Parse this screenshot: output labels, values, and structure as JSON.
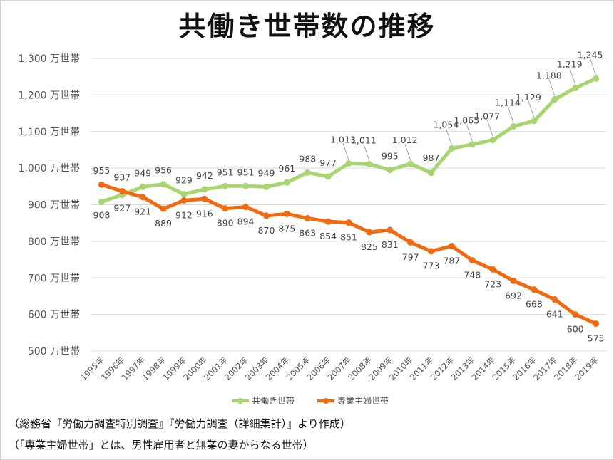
{
  "title": "共働き世帯数の推移",
  "notes": [
    "（総務省『労働力調査特別調査』『労働力調査（詳細集計）』より作成）",
    "（「専業主婦世帯」とは、男性雇用者と無業の妻からなる世帯）"
  ],
  "chart_data": {
    "type": "line",
    "title": "共働き世帯数の推移",
    "xlabel": "",
    "ylabel": "",
    "ylim": [
      500,
      1300
    ],
    "y_ticks": [
      "1,300 万世帯",
      "1,200 万世帯",
      "1,100 万世帯",
      "1,000 万世帯",
      "900 万世帯",
      "800 万世帯",
      "700 万世帯",
      "600 万世帯",
      "500 万世帯"
    ],
    "y_tick_values": [
      1300,
      1200,
      1100,
      1000,
      900,
      800,
      700,
      600,
      500
    ],
    "categories": [
      "1995年",
      "1996年",
      "1997年",
      "1998年",
      "1999年",
      "2000年",
      "2001年",
      "2002年",
      "2003年",
      "2004年",
      "2005年",
      "2006年",
      "2007年",
      "2008年",
      "2009年",
      "2010年",
      "2011年",
      "2012年",
      "2013年",
      "2014年",
      "2015年",
      "2016年",
      "2017年",
      "2018年",
      "2019年"
    ],
    "legend_position": "bottom",
    "grid": true,
    "series": [
      {
        "name": "共働き世帯",
        "color": "#a9d570",
        "values": [
          908,
          927,
          949,
          956,
          929,
          942,
          951,
          951,
          949,
          961,
          988,
          977,
          1013,
          1011,
          995,
          1012,
          987,
          1054,
          1065,
          1077,
          1114,
          1129,
          1188,
          1219,
          1245
        ],
        "labels": [
          "908",
          "927",
          "949",
          "956",
          "929",
          "942",
          "951",
          "951",
          "949",
          "961",
          "988",
          "977",
          "1,013",
          "1,011",
          "995",
          "1,012",
          "987",
          "1,054",
          "1,065",
          "1,077",
          "1,114",
          "1,129",
          "1,188",
          "1,219",
          "1,245"
        ]
      },
      {
        "name": "専業主婦世帯",
        "color": "#f26a10",
        "values": [
          955,
          937,
          921,
          889,
          912,
          916,
          890,
          894,
          870,
          875,
          863,
          854,
          851,
          825,
          831,
          797,
          773,
          787,
          748,
          723,
          692,
          668,
          641,
          600,
          575
        ],
        "labels": [
          "955",
          "937",
          "921",
          "889",
          "912",
          "916",
          "890",
          "894",
          "870",
          "875",
          "863",
          "854",
          "851",
          "825",
          "831",
          "797",
          "773",
          "787",
          "748",
          "723",
          "692",
          "668",
          "641",
          "600",
          "575"
        ]
      }
    ]
  }
}
